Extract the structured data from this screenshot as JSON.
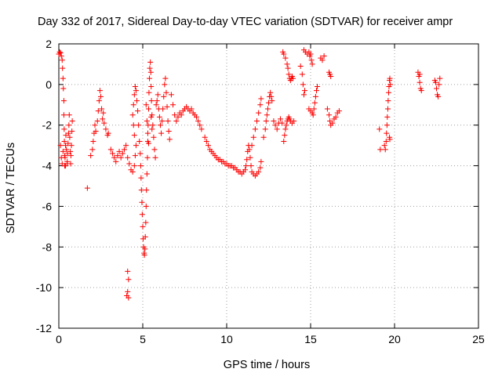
{
  "chart_data": {
    "type": "scatter",
    "title": "Day 332 of 2017, Sidereal Day-to-day VTEC variation (SDTVAR) for receiver ampr",
    "xlabel": "GPS time / hours",
    "ylabel": "SDTVAR / TECUs",
    "xlim": [
      0,
      25
    ],
    "ylim": [
      -12,
      2
    ],
    "xticks": [
      0,
      5,
      10,
      15,
      20,
      25
    ],
    "yticks": [
      -12,
      -10,
      -8,
      -6,
      -4,
      -2,
      0,
      2
    ],
    "grid": true,
    "marker": "+",
    "color": "#ff0000",
    "series": [
      {
        "name": "SDTVAR",
        "points": [
          [
            0.0,
            1.5
          ],
          [
            0.05,
            1.6
          ],
          [
            0.1,
            1.55
          ],
          [
            0.15,
            1.4
          ],
          [
            0.2,
            1.2
          ],
          [
            0.22,
            0.8
          ],
          [
            0.25,
            0.3
          ],
          [
            0.27,
            -0.2
          ],
          [
            0.3,
            -0.8
          ],
          [
            0.3,
            -1.5
          ],
          [
            0.32,
            -2.2
          ],
          [
            0.33,
            -2.8
          ],
          [
            0.35,
            -3.5
          ],
          [
            0.35,
            -4.0
          ],
          [
            0.37,
            -3.6
          ],
          [
            0.4,
            -3.0
          ],
          [
            0.42,
            -2.5
          ],
          [
            0.45,
            -3.2
          ],
          [
            0.5,
            -3.8
          ],
          [
            0.52,
            -3.4
          ],
          [
            0.55,
            -2.9
          ],
          [
            0.58,
            -2.4
          ],
          [
            0.6,
            -2.0
          ],
          [
            0.62,
            -1.5
          ],
          [
            0.65,
            -2.6
          ],
          [
            0.68,
            -3.3
          ],
          [
            0.7,
            -3.9
          ],
          [
            0.72,
            -3.5
          ],
          [
            0.75,
            -3.0
          ],
          [
            0.78,
            -2.3
          ],
          [
            0.8,
            -1.8
          ],
          [
            0.1,
            -3.0
          ],
          [
            0.15,
            -3.6
          ],
          [
            0.2,
            -3.9
          ],
          [
            0.25,
            -3.3
          ],
          [
            0.4,
            -4.0
          ],
          [
            0.5,
            -3.9
          ],
          [
            1.7,
            -5.1
          ],
          [
            1.9,
            -3.5
          ],
          [
            2.0,
            -3.2
          ],
          [
            2.05,
            -2.8
          ],
          [
            2.1,
            -2.4
          ],
          [
            2.15,
            -2.0
          ],
          [
            2.2,
            -2.3
          ],
          [
            2.3,
            -1.8
          ],
          [
            2.35,
            -1.3
          ],
          [
            2.4,
            -0.8
          ],
          [
            2.45,
            -0.3
          ],
          [
            2.5,
            -0.6
          ],
          [
            2.55,
            -1.2
          ],
          [
            2.6,
            -1.7
          ],
          [
            2.65,
            -1.4
          ],
          [
            2.7,
            -1.9
          ],
          [
            2.8,
            -2.2
          ],
          [
            2.9,
            -2.5
          ],
          [
            2.95,
            -2.4
          ],
          [
            3.1,
            -3.2
          ],
          [
            3.2,
            -3.4
          ],
          [
            3.3,
            -3.6
          ],
          [
            3.4,
            -3.8
          ],
          [
            3.5,
            -3.5
          ],
          [
            3.6,
            -3.3
          ],
          [
            3.7,
            -3.6
          ],
          [
            3.8,
            -3.4
          ],
          [
            3.9,
            -3.2
          ],
          [
            4.0,
            -3.0
          ],
          [
            4.05,
            -10.4
          ],
          [
            4.1,
            -10.2
          ],
          [
            4.15,
            -9.6
          ],
          [
            4.1,
            -9.2
          ],
          [
            4.15,
            -10.5
          ],
          [
            4.1,
            -3.6
          ],
          [
            4.2,
            -3.9
          ],
          [
            4.3,
            -4.2
          ],
          [
            4.4,
            -4.3
          ],
          [
            4.5,
            -4.0
          ],
          [
            4.55,
            -3.5
          ],
          [
            4.6,
            -3.0
          ],
          [
            4.5,
            -2.5
          ],
          [
            4.45,
            -2.0
          ],
          [
            4.4,
            -1.5
          ],
          [
            4.45,
            -1.0
          ],
          [
            4.5,
            -0.5
          ],
          [
            4.55,
            -0.1
          ],
          [
            4.6,
            -0.3
          ],
          [
            4.65,
            -0.8
          ],
          [
            4.7,
            -1.3
          ],
          [
            4.75,
            -2.0
          ],
          [
            4.8,
            -2.8
          ],
          [
            4.85,
            -3.4
          ],
          [
            4.88,
            -4.0
          ],
          [
            4.9,
            -4.6
          ],
          [
            4.92,
            -5.2
          ],
          [
            4.95,
            -5.8
          ],
          [
            4.97,
            -6.4
          ],
          [
            5.0,
            -7.0
          ],
          [
            5.02,
            -7.6
          ],
          [
            5.05,
            -8.0
          ],
          [
            5.08,
            -8.3
          ],
          [
            5.1,
            -8.4
          ],
          [
            5.13,
            -8.1
          ],
          [
            5.15,
            -7.5
          ],
          [
            5.18,
            -6.8
          ],
          [
            5.2,
            -6.0
          ],
          [
            5.22,
            -5.2
          ],
          [
            5.25,
            -4.4
          ],
          [
            5.28,
            -3.6
          ],
          [
            5.3,
            -2.8
          ],
          [
            5.32,
            -2.0
          ],
          [
            5.35,
            -1.2
          ],
          [
            5.37,
            -0.4
          ],
          [
            5.4,
            0.3
          ],
          [
            5.42,
            0.8
          ],
          [
            5.45,
            1.1
          ],
          [
            5.48,
            0.6
          ],
          [
            5.5,
            -0.1
          ],
          [
            5.52,
            -0.8
          ],
          [
            5.55,
            -1.5
          ],
          [
            5.6,
            -2.0
          ],
          [
            5.65,
            -2.6
          ],
          [
            5.7,
            -3.2
          ],
          [
            5.75,
            -3.6
          ],
          [
            5.2,
            -1.0
          ],
          [
            5.25,
            -1.8
          ],
          [
            5.3,
            -2.4
          ],
          [
            5.35,
            -2.9
          ],
          [
            5.5,
            -1.6
          ],
          [
            5.55,
            -2.2
          ],
          [
            5.8,
            -1.0
          ],
          [
            5.85,
            -0.8
          ],
          [
            5.9,
            -0.5
          ],
          [
            5.95,
            -1.2
          ],
          [
            6.0,
            -1.6
          ],
          [
            6.05,
            -2.0
          ],
          [
            6.1,
            -2.4
          ],
          [
            6.15,
            -1.8
          ],
          [
            6.2,
            -1.2
          ],
          [
            6.25,
            -0.6
          ],
          [
            6.3,
            0.0
          ],
          [
            6.35,
            0.3
          ],
          [
            6.4,
            -0.4
          ],
          [
            6.45,
            -1.1
          ],
          [
            6.5,
            -1.8
          ],
          [
            6.55,
            -2.3
          ],
          [
            6.6,
            -2.7
          ],
          [
            6.7,
            -0.5
          ],
          [
            6.8,
            -1.0
          ],
          [
            6.9,
            -1.5
          ],
          [
            7.0,
            -1.8
          ],
          [
            7.1,
            -1.6
          ],
          [
            7.2,
            -1.4
          ],
          [
            7.3,
            -1.5
          ],
          [
            7.4,
            -1.3
          ],
          [
            7.5,
            -1.2
          ],
          [
            7.6,
            -1.1
          ],
          [
            7.7,
            -1.2
          ],
          [
            7.8,
            -1.3
          ],
          [
            7.9,
            -1.2
          ],
          [
            8.0,
            -1.4
          ],
          [
            8.1,
            -1.5
          ],
          [
            8.2,
            -1.6
          ],
          [
            8.3,
            -1.8
          ],
          [
            8.4,
            -2.0
          ],
          [
            8.5,
            -2.2
          ],
          [
            8.7,
            -2.6
          ],
          [
            8.8,
            -2.8
          ],
          [
            8.9,
            -3.0
          ],
          [
            9.0,
            -3.2
          ],
          [
            9.1,
            -3.3
          ],
          [
            9.2,
            -3.4
          ],
          [
            9.3,
            -3.5
          ],
          [
            9.4,
            -3.6
          ],
          [
            9.5,
            -3.7
          ],
          [
            9.6,
            -3.7
          ],
          [
            9.7,
            -3.8
          ],
          [
            9.8,
            -3.8
          ],
          [
            9.9,
            -3.9
          ],
          [
            10.0,
            -3.9
          ],
          [
            10.1,
            -4.0
          ],
          [
            10.2,
            -4.0
          ],
          [
            10.3,
            -4.0
          ],
          [
            10.4,
            -4.1
          ],
          [
            10.5,
            -4.1
          ],
          [
            10.6,
            -4.2
          ],
          [
            10.7,
            -4.3
          ],
          [
            10.8,
            -4.3
          ],
          [
            10.9,
            -4.4
          ],
          [
            11.0,
            -4.3
          ],
          [
            11.1,
            -4.2
          ],
          [
            11.15,
            -4.0
          ],
          [
            11.2,
            -3.7
          ],
          [
            11.25,
            -3.3
          ],
          [
            11.3,
            -3.0
          ],
          [
            11.35,
            -3.2
          ],
          [
            11.4,
            -3.6
          ],
          [
            11.45,
            -4.0
          ],
          [
            11.5,
            -4.3
          ],
          [
            11.6,
            -4.4
          ],
          [
            11.7,
            -4.5
          ],
          [
            11.8,
            -4.4
          ],
          [
            11.9,
            -4.3
          ],
          [
            12.0,
            -4.1
          ],
          [
            12.05,
            -3.8
          ],
          [
            11.5,
            -3.0
          ],
          [
            11.6,
            -2.6
          ],
          [
            11.7,
            -2.2
          ],
          [
            11.8,
            -1.8
          ],
          [
            11.9,
            -1.4
          ],
          [
            12.0,
            -1.0
          ],
          [
            12.05,
            -0.7
          ],
          [
            12.2,
            -2.6
          ],
          [
            12.3,
            -2.2
          ],
          [
            12.35,
            -1.8
          ],
          [
            12.4,
            -1.5
          ],
          [
            12.45,
            -1.2
          ],
          [
            12.5,
            -0.9
          ],
          [
            12.55,
            -0.6
          ],
          [
            12.6,
            -0.4
          ],
          [
            12.65,
            -0.6
          ],
          [
            12.7,
            -0.8
          ],
          [
            12.8,
            -1.8
          ],
          [
            12.9,
            -2.0
          ],
          [
            13.0,
            -2.2
          ],
          [
            13.1,
            -1.9
          ],
          [
            13.2,
            -1.7
          ],
          [
            13.3,
            -1.9
          ],
          [
            13.35,
            1.6
          ],
          [
            13.4,
            1.5
          ],
          [
            13.5,
            1.3
          ],
          [
            13.6,
            1.0
          ],
          [
            13.65,
            0.8
          ],
          [
            13.7,
            0.5
          ],
          [
            13.75,
            0.3
          ],
          [
            13.8,
            0.2
          ],
          [
            13.85,
            0.3
          ],
          [
            13.9,
            0.4
          ],
          [
            13.95,
            0.3
          ],
          [
            13.4,
            -2.8
          ],
          [
            13.45,
            -2.5
          ],
          [
            13.5,
            -2.2
          ],
          [
            13.55,
            -2.0
          ],
          [
            13.6,
            -1.8
          ],
          [
            13.65,
            -1.7
          ],
          [
            13.7,
            -1.6
          ],
          [
            13.75,
            -1.7
          ],
          [
            13.8,
            -1.8
          ],
          [
            13.9,
            -1.9
          ],
          [
            14.0,
            -1.8
          ],
          [
            14.4,
            0.9
          ],
          [
            14.5,
            0.5
          ],
          [
            14.55,
            0.0
          ],
          [
            14.6,
            -0.5
          ],
          [
            14.65,
            -0.3
          ],
          [
            14.6,
            1.7
          ],
          [
            14.7,
            1.6
          ],
          [
            14.8,
            1.5
          ],
          [
            14.9,
            1.6
          ],
          [
            14.95,
            1.4
          ],
          [
            15.0,
            1.5
          ],
          [
            15.05,
            1.2
          ],
          [
            15.1,
            1.0
          ],
          [
            14.9,
            -1.2
          ],
          [
            15.0,
            -1.3
          ],
          [
            15.1,
            -1.4
          ],
          [
            15.15,
            -1.5
          ],
          [
            15.2,
            -1.2
          ],
          [
            15.25,
            -0.9
          ],
          [
            15.3,
            -0.6
          ],
          [
            15.35,
            -0.3
          ],
          [
            15.4,
            -0.1
          ],
          [
            15.6,
            1.3
          ],
          [
            15.7,
            1.2
          ],
          [
            15.8,
            1.4
          ],
          [
            16.0,
            -1.2
          ],
          [
            16.1,
            -1.5
          ],
          [
            16.15,
            -1.8
          ],
          [
            16.2,
            -2.0
          ],
          [
            16.3,
            -1.9
          ],
          [
            16.4,
            -1.7
          ],
          [
            16.5,
            -1.6
          ],
          [
            16.6,
            -1.4
          ],
          [
            16.7,
            -1.3
          ],
          [
            16.1,
            0.6
          ],
          [
            16.15,
            0.5
          ],
          [
            16.2,
            0.4
          ],
          [
            19.1,
            -2.2
          ],
          [
            19.15,
            -3.2
          ],
          [
            19.4,
            -3.0
          ],
          [
            19.45,
            -3.2
          ],
          [
            19.5,
            -2.8
          ],
          [
            19.52,
            -2.4
          ],
          [
            19.55,
            -2.0
          ],
          [
            19.57,
            -1.6
          ],
          [
            19.6,
            -1.2
          ],
          [
            19.62,
            -0.8
          ],
          [
            19.65,
            -0.4
          ],
          [
            19.67,
            -0.1
          ],
          [
            19.7,
            0.2
          ],
          [
            19.72,
            0.3
          ],
          [
            19.75,
            0.0
          ],
          [
            19.7,
            -2.6
          ],
          [
            19.72,
            -2.7
          ],
          [
            21.4,
            0.6
          ],
          [
            21.45,
            0.4
          ],
          [
            21.5,
            0.1
          ],
          [
            21.55,
            -0.2
          ],
          [
            21.6,
            -0.3
          ],
          [
            21.5,
            0.5
          ],
          [
            22.4,
            0.2
          ],
          [
            22.45,
            0.1
          ],
          [
            22.5,
            -0.2
          ],
          [
            22.55,
            -0.5
          ],
          [
            22.6,
            -0.6
          ],
          [
            22.65,
            0.0
          ],
          [
            22.7,
            0.3
          ]
        ]
      }
    ]
  }
}
